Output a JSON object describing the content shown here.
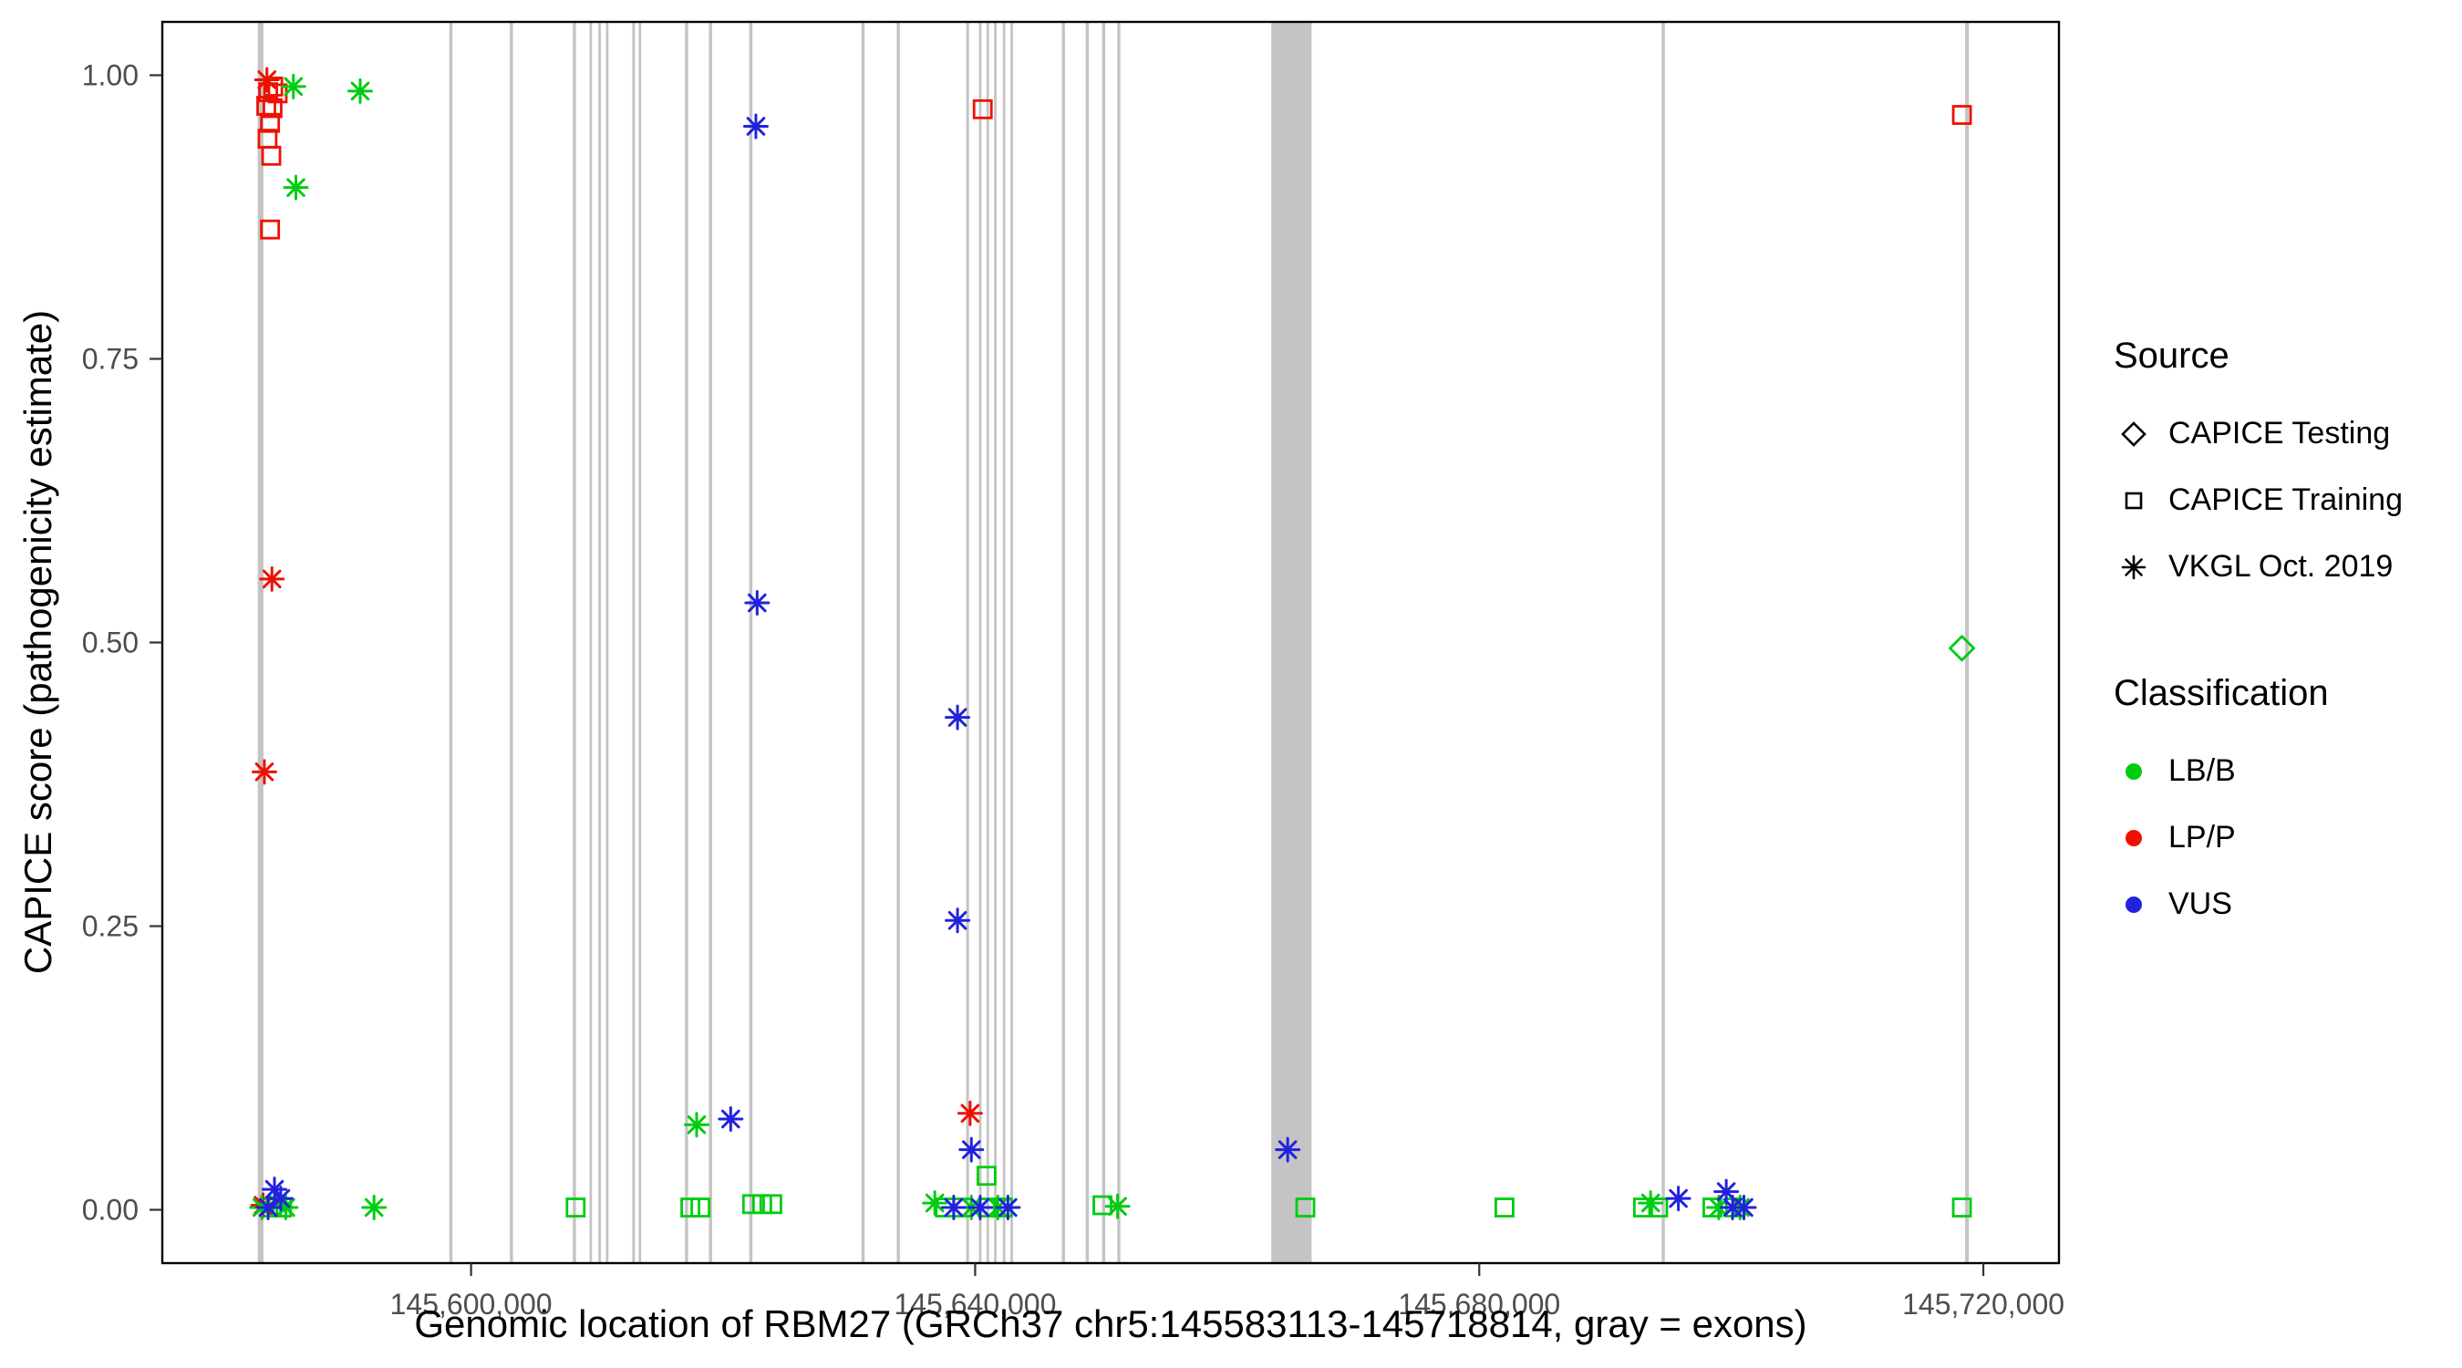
{
  "chart_data": {
    "type": "scatter",
    "title": "",
    "xlabel": "Genomic location of RBM27 (GRCh37 chr5:145583113-145718814, gray = exons)",
    "ylabel": "CAPICE score (pathogenicity estimate)",
    "xlim": [
      145575500,
      145726000
    ],
    "ylim": [
      -0.047,
      1.047
    ],
    "grid": "off",
    "x_ticks": [
      {
        "value": 145600000,
        "label": "145,600,000"
      },
      {
        "value": 145640000,
        "label": "145,640,000"
      },
      {
        "value": 145680000,
        "label": "145,680,000"
      },
      {
        "value": 145720000,
        "label": "145,720,000"
      }
    ],
    "y_ticks": [
      {
        "value": 0.0,
        "label": "0.00"
      },
      {
        "value": 0.25,
        "label": "0.25"
      },
      {
        "value": 0.5,
        "label": "0.50"
      },
      {
        "value": 0.75,
        "label": "0.75"
      },
      {
        "value": 1.0,
        "label": "1.00"
      }
    ],
    "colors": {
      "LB/B": "#00CC11",
      "LP/P": "#EE1100",
      "VUS": "#2222DD",
      "exon": "#C4C4C4",
      "axis_text": "#4D4D4D",
      "panel_border": "#000000"
    },
    "exons": [
      {
        "pos": 145583300,
        "width_bp": 450
      },
      {
        "pos": 145598400,
        "width_bp": 250
      },
      {
        "pos": 145603200,
        "width_bp": 250
      },
      {
        "pos": 145608200,
        "width_bp": 250
      },
      {
        "pos": 145609500,
        "width_bp": 200
      },
      {
        "pos": 145610200,
        "width_bp": 200
      },
      {
        "pos": 145610800,
        "width_bp": 200
      },
      {
        "pos": 145612900,
        "width_bp": 220
      },
      {
        "pos": 145613400,
        "width_bp": 200
      },
      {
        "pos": 145617100,
        "width_bp": 250
      },
      {
        "pos": 145619000,
        "width_bp": 250
      },
      {
        "pos": 145622200,
        "width_bp": 250
      },
      {
        "pos": 145631100,
        "width_bp": 250
      },
      {
        "pos": 145633900,
        "width_bp": 250
      },
      {
        "pos": 145639400,
        "width_bp": 220
      },
      {
        "pos": 145640400,
        "width_bp": 200
      },
      {
        "pos": 145641000,
        "width_bp": 200
      },
      {
        "pos": 145641600,
        "width_bp": 200
      },
      {
        "pos": 145642300,
        "width_bp": 200
      },
      {
        "pos": 145642900,
        "width_bp": 200
      },
      {
        "pos": 145647000,
        "width_bp": 250
      },
      {
        "pos": 145648900,
        "width_bp": 250
      },
      {
        "pos": 145650200,
        "width_bp": 250
      },
      {
        "pos": 145651400,
        "width_bp": 250
      },
      {
        "pos": 145665100,
        "width_bp": 3200
      },
      {
        "pos": 145694600,
        "width_bp": 250
      },
      {
        "pos": 145718700,
        "width_bp": 300
      }
    ],
    "series": [
      {
        "name": "CAPICE Testing",
        "marker": "diamond-open",
        "groups": [
          {
            "classification": "LB/B",
            "points": [
              [
                145718300,
                0.495
              ]
            ]
          }
        ]
      },
      {
        "name": "CAPICE Training",
        "marker": "square-open",
        "groups": [
          {
            "classification": "LP/P",
            "points": [
              [
                145584300,
                0.99
              ],
              [
                145583900,
                0.985
              ],
              [
                145584650,
                0.984
              ],
              [
                145583750,
                0.973
              ],
              [
                145584250,
                0.971
              ],
              [
                145584050,
                0.958
              ],
              [
                145583850,
                0.944
              ],
              [
                145584150,
                0.929
              ],
              [
                145584050,
                0.864
              ],
              [
                145640600,
                0.97
              ],
              [
                145718300,
                0.965
              ]
            ]
          },
          {
            "classification": "LB/B",
            "points": [
              [
                145584200,
                0.002
              ],
              [
                145585000,
                0.002
              ],
              [
                145608300,
                0.002
              ],
              [
                145617400,
                0.002
              ],
              [
                145618200,
                0.002
              ],
              [
                145622300,
                0.005
              ],
              [
                145623100,
                0.005
              ],
              [
                145623900,
                0.005
              ],
              [
                145640900,
                0.03
              ],
              [
                145637600,
                0.002
              ],
              [
                145639000,
                0.002
              ],
              [
                145641000,
                0.002
              ],
              [
                145642200,
                0.002
              ],
              [
                145650100,
                0.004
              ],
              [
                145666200,
                0.002
              ],
              [
                145682000,
                0.002
              ],
              [
                145693000,
                0.002
              ],
              [
                145694200,
                0.002
              ],
              [
                145698500,
                0.002
              ],
              [
                145700300,
                0.002
              ],
              [
                145718300,
                0.002
              ]
            ]
          }
        ]
      },
      {
        "name": "VKGL Oct. 2019",
        "marker": "asterisk",
        "groups": [
          {
            "classification": "LP/P",
            "points": [
              [
                145583800,
                0.996
              ],
              [
                145584200,
                0.556
              ],
              [
                145583600,
                0.386
              ],
              [
                145583500,
                0.004
              ],
              [
                145639600,
                0.085
              ]
            ]
          },
          {
            "classification": "LB/B",
            "points": [
              [
                145585900,
                0.99
              ],
              [
                145591200,
                0.986
              ],
              [
                145586100,
                0.901
              ],
              [
                145583400,
                0.002
              ],
              [
                145584600,
                0.006
              ],
              [
                145585300,
                0.002
              ],
              [
                145592300,
                0.002
              ],
              [
                145617900,
                0.075
              ],
              [
                145636800,
                0.006
              ],
              [
                145639700,
                0.002
              ],
              [
                145641800,
                0.002
              ],
              [
                145651300,
                0.003
              ],
              [
                145693600,
                0.006
              ],
              [
                145699000,
                0.002
              ],
              [
                145700700,
                0.002
              ]
            ]
          },
          {
            "classification": "VUS",
            "points": [
              [
                145622600,
                0.955
              ],
              [
                145622700,
                0.535
              ],
              [
                145638600,
                0.434
              ],
              [
                145638600,
                0.255
              ],
              [
                145620600,
                0.08
              ],
              [
                145639700,
                0.053
              ],
              [
                145664800,
                0.053
              ],
              [
                145584400,
                0.018
              ],
              [
                145584900,
                0.01
              ],
              [
                145583900,
                0.002
              ],
              [
                145638300,
                0.002
              ],
              [
                145640400,
                0.002
              ],
              [
                145642600,
                0.002
              ],
              [
                145695800,
                0.01
              ],
              [
                145699600,
                0.016
              ],
              [
                145700100,
                0.002
              ],
              [
                145701000,
                0.002
              ]
            ]
          }
        ]
      }
    ],
    "legend": {
      "source": {
        "title": "Source",
        "items": [
          {
            "label": "CAPICE Testing",
            "icon": "diamond-open-icon"
          },
          {
            "label": "CAPICE Training",
            "icon": "square-open-icon"
          },
          {
            "label": "VKGL Oct. 2019",
            "icon": "asterisk-icon"
          }
        ]
      },
      "classification": {
        "title": "Classification",
        "items": [
          {
            "label": "LB/B",
            "color": "#00CC11"
          },
          {
            "label": "LP/P",
            "color": "#EE1100"
          },
          {
            "label": "VUS",
            "color": "#2222DD"
          }
        ]
      }
    }
  }
}
